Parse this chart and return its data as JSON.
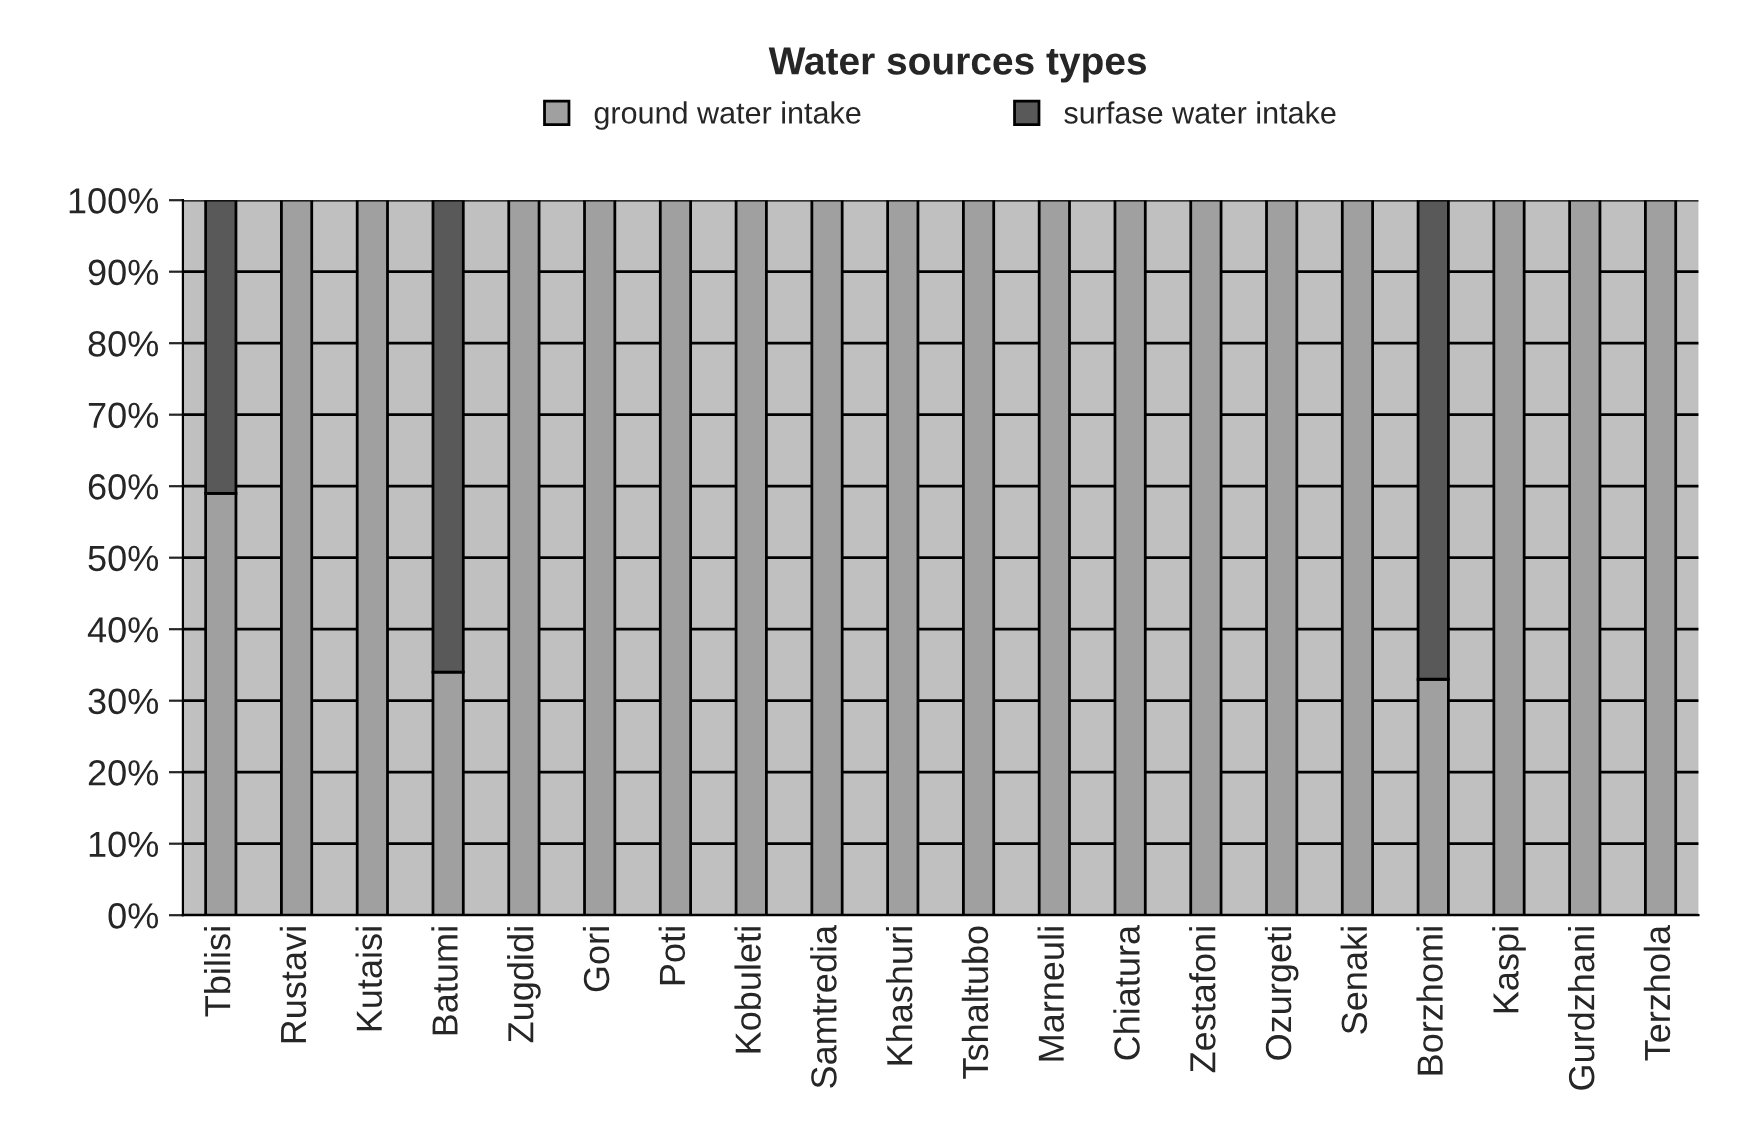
{
  "chart_data": {
    "type": "bar",
    "stacked": true,
    "title": "Water sources types",
    "categories": [
      "Tbilisi",
      "Rustavi",
      "Kutaisi",
      "Batumi",
      "Zugdidi",
      "Gori",
      "Poti",
      "Kobuleti",
      "Samtredia",
      "Khashuri",
      "Tshaltubo",
      "Marneuli",
      "Chiatura",
      "Zestafoni",
      "Ozurgeti",
      "Senaki",
      "Borzhomi",
      "Kaspi",
      "Gurdzhani",
      "Terzhola"
    ],
    "series": [
      {
        "name": "ground water intake",
        "color": "#a0a0a0",
        "values": [
          59,
          100,
          100,
          34,
          100,
          100,
          100,
          100,
          100,
          100,
          100,
          100,
          100,
          100,
          100,
          100,
          33,
          100,
          100,
          100
        ]
      },
      {
        "name": "surfase water intake",
        "color": "#595959",
        "values": [
          41,
          0,
          0,
          66,
          0,
          0,
          0,
          0,
          0,
          0,
          0,
          0,
          0,
          0,
          0,
          0,
          67,
          0,
          0,
          0
        ]
      }
    ],
    "ylim": [
      0,
      100
    ],
    "yticks": [
      {
        "value": 0,
        "label": "0%"
      },
      {
        "value": 10,
        "label": "10%"
      },
      {
        "value": 20,
        "label": "20%"
      },
      {
        "value": 30,
        "label": "30%"
      },
      {
        "value": 40,
        "label": "40%"
      },
      {
        "value": 50,
        "label": "50%"
      },
      {
        "value": 60,
        "label": "60%"
      },
      {
        "value": 70,
        "label": "70%"
      },
      {
        "value": 80,
        "label": "80%"
      },
      {
        "value": 90,
        "label": "90%"
      },
      {
        "value": 100,
        "label": "100%"
      }
    ],
    "grid": "y",
    "legend": "top"
  }
}
